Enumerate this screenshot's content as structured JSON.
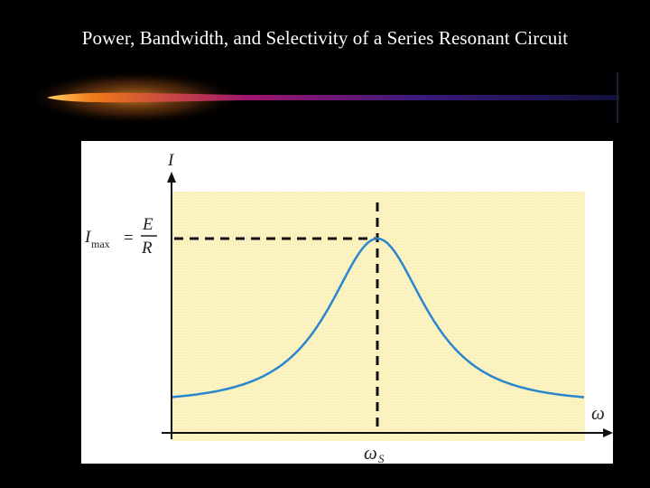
{
  "slide": {
    "title": "Power, Bandwidth, and Selectivity of a Series Resonant Circuit"
  },
  "diagram": {
    "y_axis_label": "I",
    "x_axis_label": "ω",
    "peak_label": {
      "symbol": "I",
      "subscript": "max",
      "equals": "=",
      "numerator": "E",
      "denominator": "R"
    },
    "resonance_label": {
      "symbol": "ω",
      "subscript": "S"
    },
    "colors": {
      "plot_background": "#fbf3c1",
      "curve": "#2a86cf",
      "axis": "#111111",
      "page_background": "#000000"
    }
  }
}
